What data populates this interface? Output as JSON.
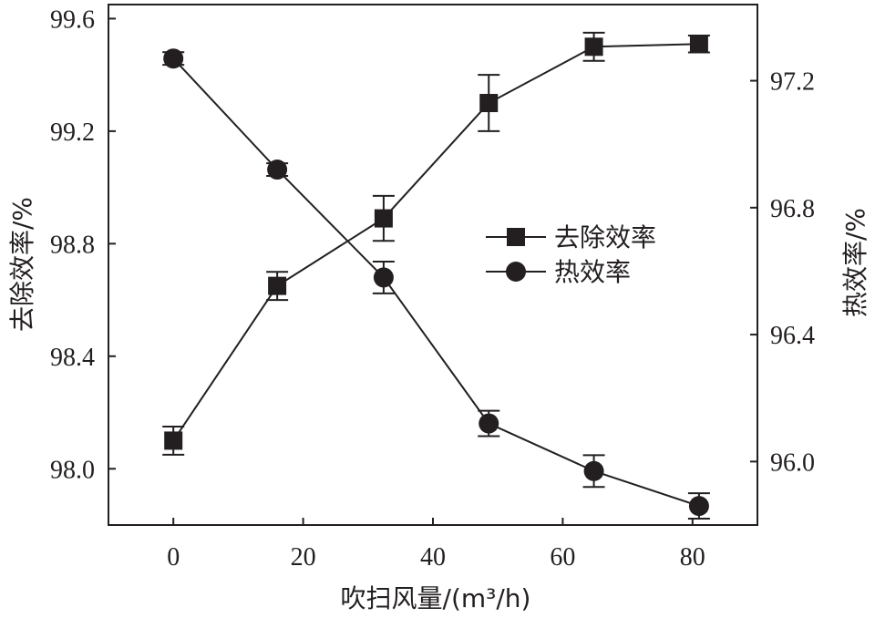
{
  "chart_data": {
    "type": "line",
    "xlabel": "吹扫风量/(m³/h)",
    "ylabel_left": "去除效率/%",
    "ylabel_right": "热效率/%",
    "xlim": [
      -10,
      90
    ],
    "ylim_left": [
      97.8,
      99.65
    ],
    "ylim_right": [
      95.8,
      97.44
    ],
    "xticks": [
      "0",
      "20",
      "40",
      "60",
      "80"
    ],
    "yticks_left": [
      "98.0",
      "98.4",
      "98.8",
      "99.2",
      "99.6"
    ],
    "yticks_right": [
      "96.0",
      "96.4",
      "96.8",
      "97.2"
    ],
    "legend_position": "center-right",
    "grid": false,
    "series": [
      {
        "name": "去除效率",
        "axis": "left",
        "marker": "square",
        "x": [
          0,
          16,
          32.4,
          48.6,
          64.8,
          81
        ],
        "y": [
          98.1,
          98.65,
          98.89,
          99.3,
          99.5,
          99.51
        ],
        "err": [
          0.05,
          0.05,
          0.08,
          0.1,
          0.05,
          0.03
        ]
      },
      {
        "name": "热效率",
        "axis": "right",
        "marker": "circle",
        "x": [
          0,
          16,
          32.4,
          48.6,
          64.8,
          81
        ],
        "y": [
          97.27,
          96.92,
          96.58,
          96.12,
          95.97,
          95.86
        ],
        "err": [
          0.02,
          0.02,
          0.05,
          0.04,
          0.05,
          0.04
        ]
      }
    ],
    "colors": {
      "ink": "#231f20"
    }
  }
}
